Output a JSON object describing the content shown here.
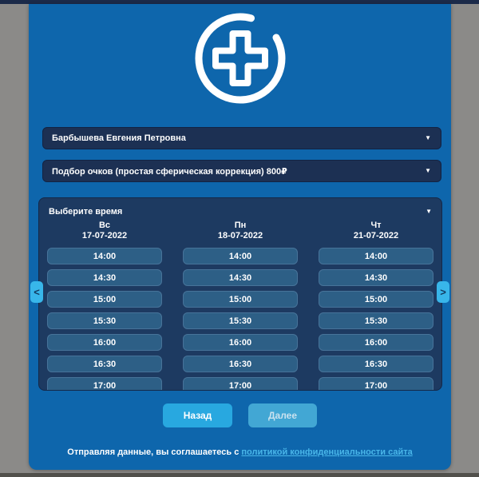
{
  "selects": {
    "doctor": {
      "value": "Барбышева Евгения Петровна"
    },
    "service": {
      "value": "Подбор очков (простая сферическая коррекция) 800₽"
    }
  },
  "time_picker": {
    "label": "Выберите время",
    "prev_symbol": "<",
    "next_symbol": ">",
    "columns": [
      {
        "day": "Вс",
        "date": "17-07-2022",
        "slots": [
          "14:00",
          "14:30",
          "15:00",
          "15:30",
          "16:00",
          "16:30",
          "17:00"
        ]
      },
      {
        "day": "Пн",
        "date": "18-07-2022",
        "slots": [
          "14:00",
          "14:30",
          "15:00",
          "15:30",
          "16:00",
          "16:30",
          "17:00"
        ]
      },
      {
        "day": "Чт",
        "date": "21-07-2022",
        "slots": [
          "14:00",
          "14:30",
          "15:00",
          "15:30",
          "16:00",
          "16:30",
          "17:00"
        ]
      }
    ]
  },
  "buttons": {
    "back": "Назад",
    "next": "Далее"
  },
  "footer": {
    "text": "Отправляя данные, вы соглашаетесь с",
    "link": "политикой конфиденциальности сайта"
  },
  "icons": {
    "dropdown_caret": "▼",
    "logo": "medical-cross-in-circle"
  },
  "colors": {
    "page_bg": "#8b8a88",
    "panel_blue": "#0e66ac",
    "dropdown_bg": "#1c3053",
    "time_panel_bg": "#1d3a61",
    "slot_bg": "#2d5f86",
    "arrow_bg": "#38b6ea",
    "back_button": "#28a8e0",
    "next_button": "#42a7d4",
    "link": "#49b6e9"
  }
}
